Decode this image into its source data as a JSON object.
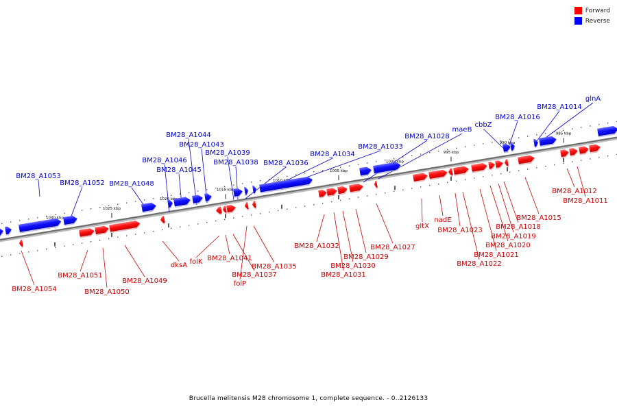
{
  "legend": {
    "forward_label": "Forward",
    "reverse_label": "Reverse",
    "forward_color": "#ff0000",
    "reverse_color": "#0000ff"
  },
  "caption": "Brucella melitensis M28 chromosome 1, complete sequence. - 0..2126133",
  "scale": {
    "ticks": [
      "1030 kbp",
      "1025 kbp",
      "1020 kbp",
      "1015 kbp",
      "1010 kbp",
      "1005 kbp",
      "1000 kbp",
      "995 kbp",
      "990 kbp",
      "985 kbp"
    ]
  },
  "genes_reverse": [
    "BM28_A1053",
    "BM28_A1052",
    "BM28_A1048",
    "BM28_A1046",
    "BM28_A1045",
    "BM28_A1044",
    "BM28_A1043",
    "BM28_A1039",
    "BM28_A1038",
    "BM28_A1036",
    "BM28_A1034",
    "BM28_A1033",
    "BM28_A1028",
    "maeB",
    "cbbZ",
    "BM28_A1016",
    "BM28_A1014",
    "glnA"
  ],
  "genes_forward": [
    "BM28_A1054",
    "BM28_A1051",
    "BM28_A1050",
    "BM28_A1049",
    "dksA",
    "folK",
    "BM28_A1041",
    "BM28_A1037",
    "folP",
    "BM28_A1035",
    "BM28_A1032",
    "BM28_A1031",
    "BM28_A1030",
    "BM28_A1029",
    "BM28_A1027",
    "gltX",
    "nadE",
    "BM28_A1023",
    "BM28_A1022",
    "BM28_A1021",
    "BM28_A1020",
    "BM28_A1019",
    "BM28_A1018",
    "BM28_A1015",
    "BM28_A1012",
    "BM28_A1011"
  ]
}
